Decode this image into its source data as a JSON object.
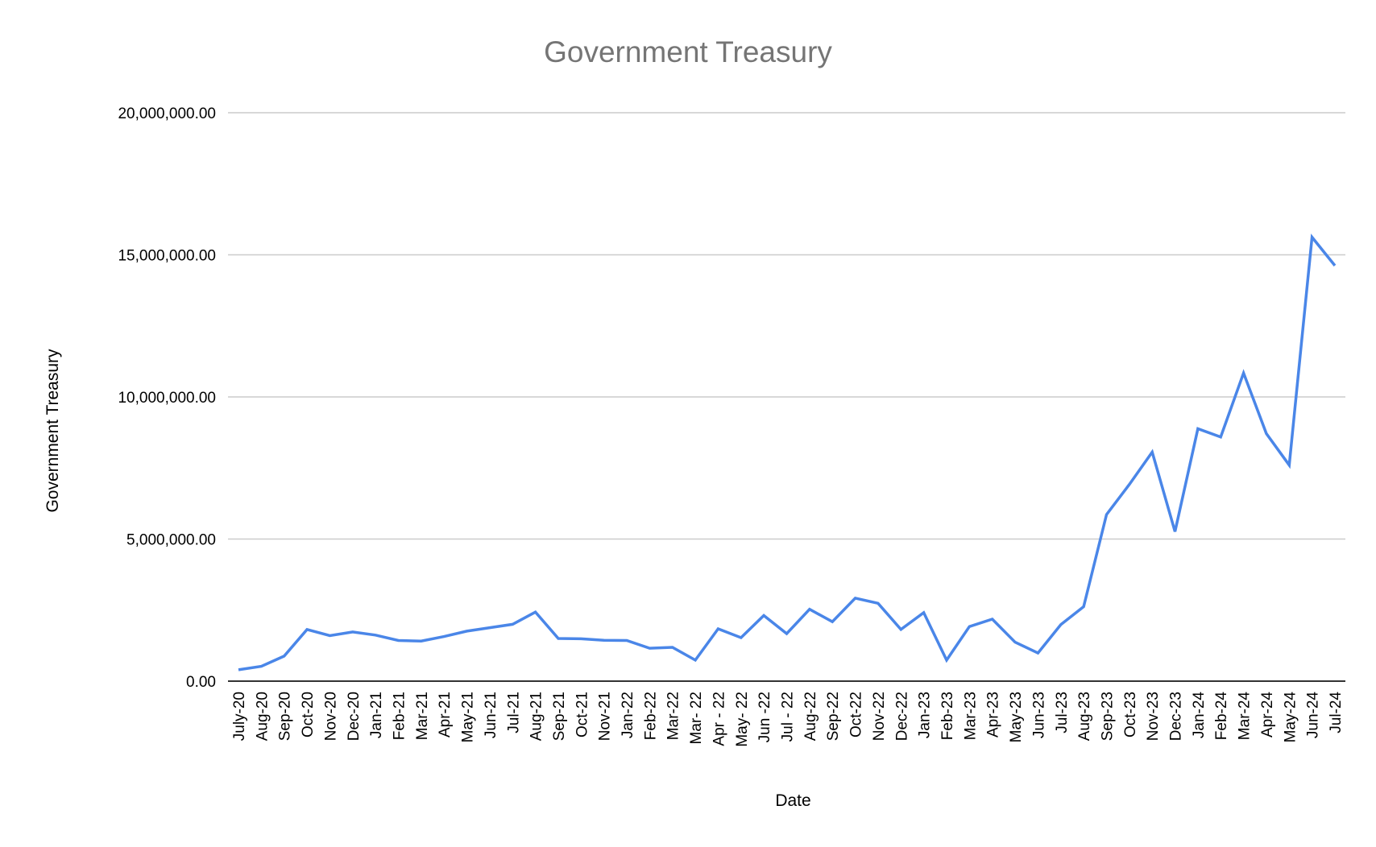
{
  "chart_data": {
    "type": "line",
    "title": "Government Treasury",
    "xlabel": "Date",
    "ylabel": "Government Treasury",
    "ylim": [
      0,
      20000000
    ],
    "yticks": [
      0,
      5000000,
      10000000,
      15000000,
      20000000
    ],
    "ytick_labels": [
      "0.00",
      "5,000,000.00",
      "10,000,000.00",
      "15,000,000.00",
      "20,000,000.00"
    ],
    "grid": true,
    "legend": "none",
    "line_color": "#4a86e8",
    "categories": [
      "July-20",
      "Aug-20",
      "Sep-20",
      "Oct-20",
      "Nov-20",
      "Dec-20",
      "Jan-21",
      "Feb-21",
      "Mar-21",
      "Apr-21",
      "May-21",
      "Jun-21",
      "Jul-21",
      "Aug-21",
      "Sep-21",
      "Oct-21",
      "Nov-21",
      "Jan-22",
      "Feb-22",
      "Mar-22",
      "Mar- 22",
      "Apr - 22",
      "May- 22",
      "Jun -22",
      "Jul - 22",
      "Aug-22",
      "Sep-22",
      "Oct-22",
      "Nov-22",
      "Dec-22",
      "Jan-23",
      "Feb-23",
      "Mar-23",
      "Apr-23",
      "May-23",
      "Jun-23",
      "Jul-23",
      "Aug-23",
      "Sep-23",
      "Oct-23",
      "Nov-23",
      "Dec-23",
      "Jan-24",
      "Feb-24",
      "Mar-24",
      "Apr-24",
      "May-24",
      "Jun-24",
      "Jul-24"
    ],
    "values": [
      400000,
      520000,
      880000,
      1820000,
      1600000,
      1730000,
      1620000,
      1430000,
      1410000,
      1570000,
      1760000,
      1880000,
      2000000,
      2430000,
      1500000,
      1490000,
      1440000,
      1430000,
      1160000,
      1190000,
      740000,
      1840000,
      1530000,
      2310000,
      1670000,
      2530000,
      2090000,
      2920000,
      2740000,
      1820000,
      2410000,
      740000,
      1920000,
      2180000,
      1370000,
      990000,
      1990000,
      2620000,
      5860000,
      6920000,
      8060000,
      5260000,
      8880000,
      8590000,
      10840000,
      8710000,
      7600000,
      15620000,
      14620000
    ]
  }
}
